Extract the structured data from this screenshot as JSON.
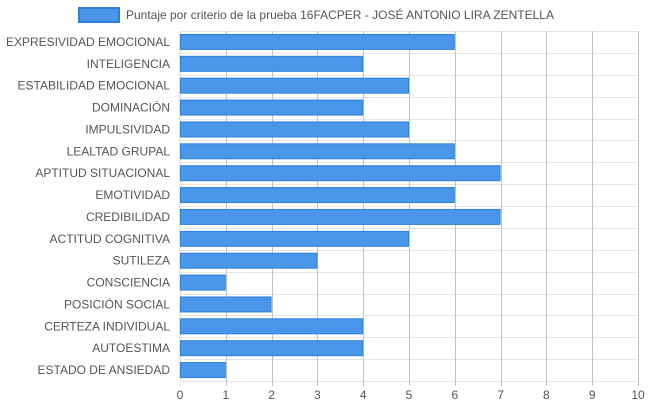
{
  "colors": {
    "bar_fill": "#4a97ea",
    "bar_stroke": "#2f80dd",
    "grid_light": "#e6e6e6",
    "grid_dark": "#c2c2c2",
    "text": "#555555"
  },
  "chart_data": {
    "type": "bar",
    "orientation": "horizontal",
    "legend_position": "top",
    "grid": true,
    "xlim": [
      0,
      10
    ],
    "x_ticks": [
      "0",
      "1",
      "2",
      "3",
      "4",
      "5",
      "6",
      "7",
      "8",
      "9",
      "10"
    ],
    "categories": [
      "EXPRESIVIDAD EMOCIONAL",
      "INTELIGENCIA",
      "ESTABILIDAD EMOCIONAL",
      "DOMINACIÓN",
      "IMPULSIVIDAD",
      "LEALTAD GRUPAL",
      "APTITUD SITUACIONAL",
      "EMOTIVIDAD",
      "CREDIBILIDAD",
      "ACTITUD COGNITIVA",
      "SUTILEZA",
      "CONSCIENCIA",
      "POSICIÓN SOCIAL",
      "CERTEZA INDIVIDUAL",
      "AUTOESTIMA",
      "ESTADO DE ANSIEDAD"
    ],
    "series": [
      {
        "name": "Puntaje por criterio de la prueba 16FACPER - JOSÉ ANTONIO LIRA ZENTELLA",
        "values": [
          6,
          4,
          5,
          4,
          5,
          6,
          7,
          6,
          7,
          5,
          3,
          1,
          2,
          4,
          4,
          1
        ]
      }
    ]
  }
}
